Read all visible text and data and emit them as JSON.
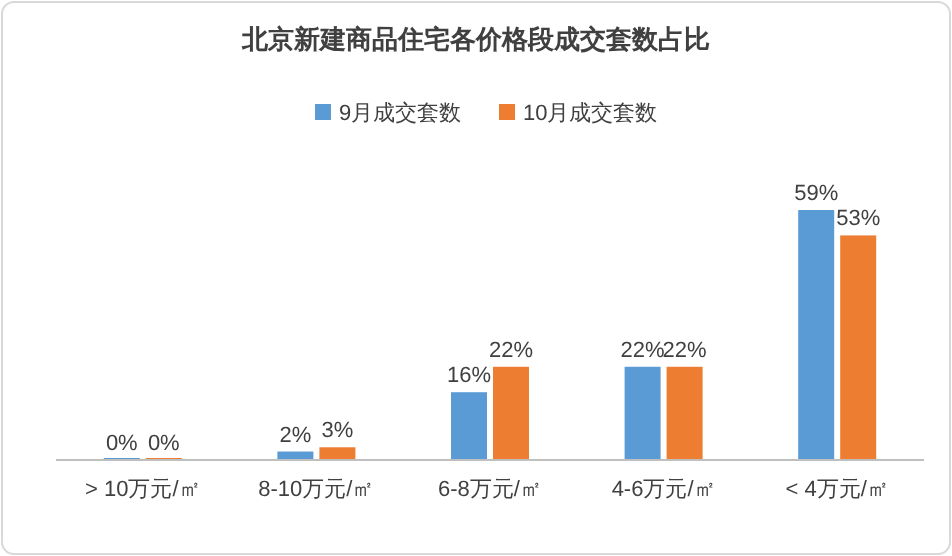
{
  "chart_data": {
    "type": "bar",
    "title": "北京新建商品住宅各价格段成交套数占比",
    "categories": [
      "> 10万元/㎡",
      "8-10万元/㎡",
      "6-8万元/㎡",
      "4-6万元/㎡",
      "< 4万元/㎡"
    ],
    "series": [
      {
        "name": "9月成交套数",
        "color": "#5b9bd5",
        "values": [
          0,
          2,
          16,
          22,
          59
        ],
        "value_labels": [
          "0%",
          "2%",
          "16%",
          "22%",
          "59%"
        ]
      },
      {
        "name": "10月成交套数",
        "color": "#ed7d31",
        "values": [
          0,
          3,
          22,
          22,
          53
        ],
        "value_labels": [
          "0%",
          "3%",
          "22%",
          "22%",
          "53%"
        ]
      }
    ],
    "legend": "top",
    "grid": false
  }
}
